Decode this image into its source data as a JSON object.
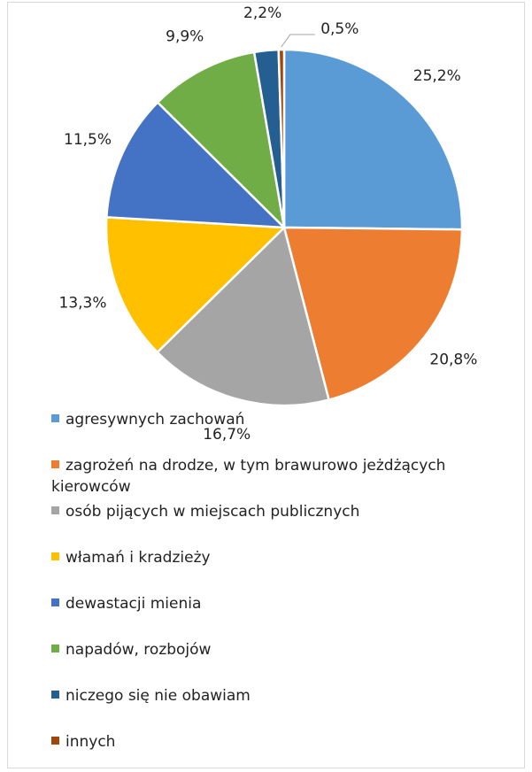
{
  "chart_data": {
    "type": "pie",
    "categories": [
      "agresywnych zachowań",
      "zagrożeń na drodze, w tym brawurowo jeżdżących kierowców",
      "osób pijących w miejscach publicznych",
      "włamań i kradzieży",
      "dewastacji mienia",
      "napadów, rozbojów",
      "niczego się nie obawiam",
      "innych"
    ],
    "values": [
      25.2,
      20.8,
      16.7,
      13.3,
      11.5,
      9.9,
      2.2,
      0.5
    ],
    "value_labels": [
      "25,2%",
      "20,8%",
      "16,7%",
      "13,3%",
      "11,5%",
      "9,9%",
      "2,2%",
      "0,5%"
    ],
    "colors": [
      "#5b9bd5",
      "#ed7d31",
      "#a5a5a5",
      "#ffc000",
      "#4472c4",
      "#70ad47",
      "#255e91",
      "#9e480e"
    ]
  }
}
